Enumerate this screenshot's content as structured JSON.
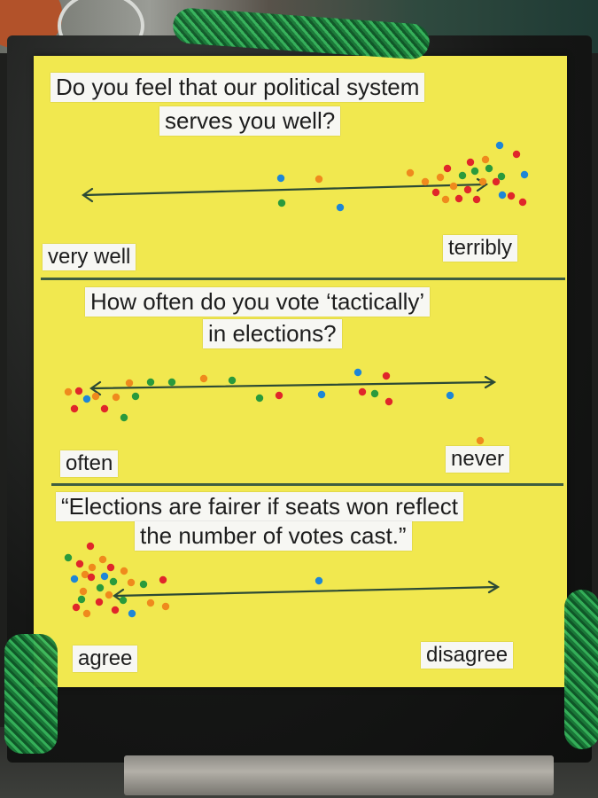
{
  "poster": {
    "questions": [
      {
        "line1": "Do you feel that our political system",
        "line2": "serves you well?",
        "left_label": "very well",
        "right_label": "terribly"
      },
      {
        "line1": "How often do you vote ‘tactically’",
        "line2": "in elections?",
        "left_label": "often",
        "right_label": "never"
      },
      {
        "line1": "“Elections are fairer if seats won reflect",
        "line2": "the number of votes cast.”",
        "left_label": "agree",
        "right_label": "disagree"
      }
    ]
  },
  "colors": {
    "paper": "#f1e84f",
    "line": "#2c4a35",
    "dot_red": "#e0262a",
    "dot_orange": "#ef8a1d",
    "dot_green": "#2a9a3c",
    "dot_blue": "#1e86d6"
  }
}
